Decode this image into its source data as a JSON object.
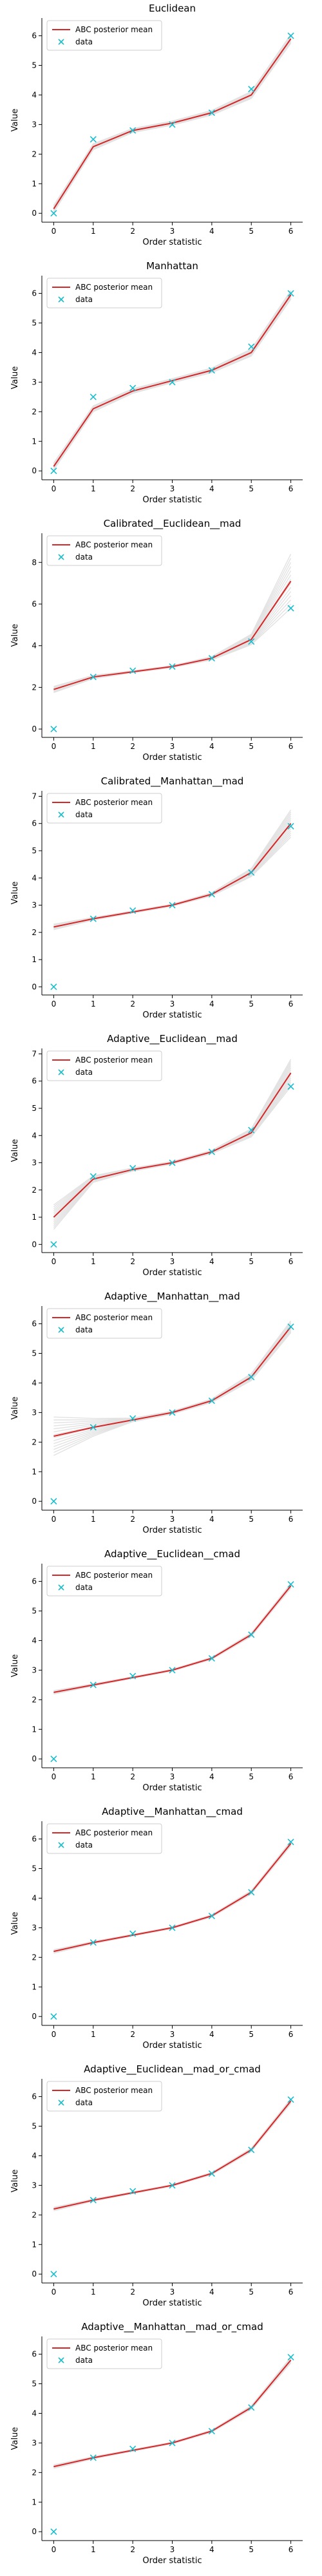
{
  "chart_data": [
    {
      "type": "line",
      "title": "Euclidean",
      "xlabel": "Order statistic",
      "ylabel": "Value",
      "xlim": [
        -0.3,
        6.3
      ],
      "ylim": [
        -0.3,
        6.6
      ],
      "xticks": [
        0,
        1,
        2,
        3,
        4,
        5,
        6
      ],
      "yticks": [
        0,
        1,
        2,
        3,
        4,
        5,
        6
      ],
      "legend": {
        "position": "top-left",
        "entries": [
          "ABC posterior mean",
          "data"
        ]
      },
      "series": [
        {
          "name": "ABC posterior mean",
          "kind": "line",
          "color": "#d62728",
          "x": [
            0,
            1,
            2,
            3,
            4,
            5,
            6
          ],
          "y": [
            0.15,
            2.25,
            2.8,
            3.05,
            3.4,
            4.0,
            5.9
          ]
        },
        {
          "name": "data",
          "kind": "marker",
          "marker": "x",
          "color": "#17becf",
          "x": [
            0,
            1,
            2,
            3,
            4,
            5,
            6
          ],
          "y": [
            0.0,
            2.5,
            2.8,
            3.0,
            3.4,
            4.2,
            6.0
          ]
        }
      ],
      "spread": [
        0.12,
        0.1,
        0.07,
        0.07,
        0.08,
        0.12,
        0.15
      ],
      "band_color": "#7f7f7f"
    },
    {
      "type": "line",
      "title": "Manhattan",
      "xlabel": "Order statistic",
      "ylabel": "Value",
      "xlim": [
        -0.3,
        6.3
      ],
      "ylim": [
        -0.3,
        6.6
      ],
      "xticks": [
        0,
        1,
        2,
        3,
        4,
        5,
        6
      ],
      "yticks": [
        0,
        1,
        2,
        3,
        4,
        5,
        6
      ],
      "legend": {
        "position": "top-left",
        "entries": [
          "ABC posterior mean",
          "data"
        ]
      },
      "series": [
        {
          "name": "ABC posterior mean",
          "kind": "line",
          "color": "#d62728",
          "x": [
            0,
            1,
            2,
            3,
            4,
            5,
            6
          ],
          "y": [
            0.15,
            2.1,
            2.7,
            3.05,
            3.4,
            4.0,
            5.95
          ]
        },
        {
          "name": "data",
          "kind": "marker",
          "marker": "x",
          "color": "#17becf",
          "x": [
            0,
            1,
            2,
            3,
            4,
            5,
            6
          ],
          "y": [
            0.0,
            2.5,
            2.8,
            3.0,
            3.4,
            4.2,
            6.0
          ]
        }
      ],
      "spread": [
        0.12,
        0.1,
        0.08,
        0.07,
        0.08,
        0.12,
        0.15
      ],
      "band_color": "#7f7f7f"
    },
    {
      "type": "line",
      "title": "Calibrated__Euclidean__mad",
      "xlabel": "Order statistic",
      "ylabel": "Value",
      "xlim": [
        -0.3,
        6.3
      ],
      "ylim": [
        -0.4,
        9.4
      ],
      "xticks": [
        0,
        1,
        2,
        3,
        4,
        5,
        6
      ],
      "yticks": [
        0,
        2,
        4,
        6,
        8
      ],
      "legend": {
        "position": "top-left",
        "entries": [
          "ABC posterior mean",
          "data"
        ]
      },
      "series": [
        {
          "name": "ABC posterior mean",
          "kind": "line",
          "color": "#d62728",
          "x": [
            0,
            1,
            2,
            3,
            4,
            5,
            6
          ],
          "y": [
            1.9,
            2.5,
            2.75,
            3.0,
            3.4,
            4.3,
            7.1
          ]
        },
        {
          "name": "data",
          "kind": "marker",
          "marker": "x",
          "color": "#17becf",
          "x": [
            0,
            1,
            2,
            3,
            4,
            5,
            6
          ],
          "y": [
            0.0,
            2.5,
            2.8,
            3.0,
            3.4,
            4.2,
            5.8
          ]
        }
      ],
      "spread": [
        0.15,
        0.08,
        0.05,
        0.05,
        0.08,
        0.25,
        1.3
      ],
      "band_color": "#7f7f7f"
    },
    {
      "type": "line",
      "title": "Calibrated__Manhattan__mad",
      "xlabel": "Order statistic",
      "ylabel": "Value",
      "xlim": [
        -0.3,
        6.3
      ],
      "ylim": [
        -0.3,
        7.2
      ],
      "xticks": [
        0,
        1,
        2,
        3,
        4,
        5,
        6
      ],
      "yticks": [
        0,
        1,
        2,
        3,
        4,
        5,
        6,
        7
      ],
      "legend": {
        "position": "top-left",
        "entries": [
          "ABC posterior mean",
          "data"
        ]
      },
      "series": [
        {
          "name": "ABC posterior mean",
          "kind": "line",
          "color": "#d62728",
          "x": [
            0,
            1,
            2,
            3,
            4,
            5,
            6
          ],
          "y": [
            2.2,
            2.5,
            2.75,
            3.0,
            3.4,
            4.2,
            6.0
          ]
        },
        {
          "name": "data",
          "kind": "marker",
          "marker": "x",
          "color": "#17becf",
          "x": [
            0,
            1,
            2,
            3,
            4,
            5,
            6
          ],
          "y": [
            0.0,
            2.5,
            2.8,
            3.0,
            3.4,
            4.2,
            5.9
          ]
        }
      ],
      "spread": [
        0.1,
        0.05,
        0.04,
        0.04,
        0.06,
        0.15,
        0.5
      ],
      "band_color": "#7f7f7f"
    },
    {
      "type": "line",
      "title": "Adaptive__Euclidean__mad",
      "xlabel": "Order statistic",
      "ylabel": "Value",
      "xlim": [
        -0.3,
        6.3
      ],
      "ylim": [
        -0.3,
        7.2
      ],
      "xticks": [
        0,
        1,
        2,
        3,
        4,
        5,
        6
      ],
      "yticks": [
        0,
        1,
        2,
        3,
        4,
        5,
        6,
        7
      ],
      "legend": {
        "position": "top-left",
        "entries": [
          "ABC posterior mean",
          "data"
        ]
      },
      "series": [
        {
          "name": "ABC posterior mean",
          "kind": "line",
          "color": "#d62728",
          "x": [
            0,
            1,
            2,
            3,
            4,
            5,
            6
          ],
          "y": [
            1.0,
            2.4,
            2.75,
            3.0,
            3.4,
            4.1,
            6.3
          ]
        },
        {
          "name": "data",
          "kind": "marker",
          "marker": "x",
          "color": "#17becf",
          "x": [
            0,
            1,
            2,
            3,
            4,
            5,
            6
          ],
          "y": [
            0.0,
            2.5,
            2.8,
            3.0,
            3.4,
            4.2,
            5.8
          ]
        }
      ],
      "spread": [
        0.45,
        0.12,
        0.06,
        0.05,
        0.06,
        0.15,
        0.5
      ],
      "band_color": "#7f7f7f"
    },
    {
      "type": "line",
      "title": "Adaptive__Manhattan__mad",
      "xlabel": "Order statistic",
      "ylabel": "Value",
      "xlim": [
        -0.3,
        6.3
      ],
      "ylim": [
        -0.3,
        6.6
      ],
      "xticks": [
        0,
        1,
        2,
        3,
        4,
        5,
        6
      ],
      "yticks": [
        0,
        1,
        2,
        3,
        4,
        5,
        6
      ],
      "legend": {
        "position": "top-left",
        "entries": [
          "ABC posterior mean",
          "data"
        ]
      },
      "series": [
        {
          "name": "ABC posterior mean",
          "kind": "line",
          "color": "#d62728",
          "x": [
            0,
            1,
            2,
            3,
            4,
            5,
            6
          ],
          "y": [
            2.2,
            2.5,
            2.75,
            3.0,
            3.4,
            4.2,
            5.9
          ]
        },
        {
          "name": "data",
          "kind": "marker",
          "marker": "x",
          "color": "#17becf",
          "x": [
            0,
            1,
            2,
            3,
            4,
            5,
            6
          ],
          "y": [
            0.0,
            2.5,
            2.8,
            3.0,
            3.4,
            4.2,
            5.9
          ]
        }
      ],
      "spread": [
        0.65,
        0.3,
        0.06,
        0.05,
        0.06,
        0.12,
        0.2
      ],
      "band_color": "#7f7f7f"
    },
    {
      "type": "line",
      "title": "Adaptive__Euclidean__cmad",
      "xlabel": "Order statistic",
      "ylabel": "Value",
      "xlim": [
        -0.3,
        6.3
      ],
      "ylim": [
        -0.3,
        6.6
      ],
      "xticks": [
        0,
        1,
        2,
        3,
        4,
        5,
        6
      ],
      "yticks": [
        0,
        1,
        2,
        3,
        4,
        5,
        6
      ],
      "legend": {
        "position": "top-left",
        "entries": [
          "ABC posterior mean",
          "data"
        ]
      },
      "series": [
        {
          "name": "ABC posterior mean",
          "kind": "line",
          "color": "#d62728",
          "x": [
            0,
            1,
            2,
            3,
            4,
            5,
            6
          ],
          "y": [
            2.25,
            2.5,
            2.75,
            3.0,
            3.4,
            4.2,
            5.85
          ]
        },
        {
          "name": "data",
          "kind": "marker",
          "marker": "x",
          "color": "#17becf",
          "x": [
            0,
            1,
            2,
            3,
            4,
            5,
            6
          ],
          "y": [
            0.0,
            2.5,
            2.8,
            3.0,
            3.4,
            4.2,
            5.9
          ]
        }
      ],
      "spread": [
        0.06,
        0.04,
        0.03,
        0.03,
        0.04,
        0.06,
        0.08
      ],
      "band_color": "#7f7f7f"
    },
    {
      "type": "line",
      "title": "Adaptive__Manhattan__cmad",
      "xlabel": "Order statistic",
      "ylabel": "Value",
      "xlim": [
        -0.3,
        6.3
      ],
      "ylim": [
        -0.3,
        6.6
      ],
      "xticks": [
        0,
        1,
        2,
        3,
        4,
        5,
        6
      ],
      "yticks": [
        0,
        1,
        2,
        3,
        4,
        5,
        6
      ],
      "legend": {
        "position": "top-left",
        "entries": [
          "ABC posterior mean",
          "data"
        ]
      },
      "series": [
        {
          "name": "ABC posterior mean",
          "kind": "line",
          "color": "#d62728",
          "x": [
            0,
            1,
            2,
            3,
            4,
            5,
            6
          ],
          "y": [
            2.2,
            2.5,
            2.75,
            3.0,
            3.4,
            4.2,
            5.85
          ]
        },
        {
          "name": "data",
          "kind": "marker",
          "marker": "x",
          "color": "#17becf",
          "x": [
            0,
            1,
            2,
            3,
            4,
            5,
            6
          ],
          "y": [
            0.0,
            2.5,
            2.8,
            3.0,
            3.4,
            4.2,
            5.9
          ]
        }
      ],
      "spread": [
        0.06,
        0.04,
        0.03,
        0.03,
        0.04,
        0.06,
        0.08
      ],
      "band_color": "#7f7f7f"
    },
    {
      "type": "line",
      "title": "Adaptive__Euclidean__mad_or_cmad",
      "xlabel": "Order statistic",
      "ylabel": "Value",
      "xlim": [
        -0.3,
        6.3
      ],
      "ylim": [
        -0.3,
        6.6
      ],
      "xticks": [
        0,
        1,
        2,
        3,
        4,
        5,
        6
      ],
      "yticks": [
        0,
        1,
        2,
        3,
        4,
        5,
        6
      ],
      "legend": {
        "position": "top-left",
        "entries": [
          "ABC posterior mean",
          "data"
        ]
      },
      "series": [
        {
          "name": "ABC posterior mean",
          "kind": "line",
          "color": "#d62728",
          "x": [
            0,
            1,
            2,
            3,
            4,
            5,
            6
          ],
          "y": [
            2.2,
            2.5,
            2.75,
            3.0,
            3.4,
            4.2,
            5.85
          ]
        },
        {
          "name": "data",
          "kind": "marker",
          "marker": "x",
          "color": "#17becf",
          "x": [
            0,
            1,
            2,
            3,
            4,
            5,
            6
          ],
          "y": [
            0.0,
            2.5,
            2.8,
            3.0,
            3.4,
            4.2,
            5.9
          ]
        }
      ],
      "spread": [
        0.06,
        0.04,
        0.03,
        0.03,
        0.04,
        0.06,
        0.08
      ],
      "band_color": "#7f7f7f"
    },
    {
      "type": "line",
      "title": "Adaptive__Manhattan__mad_or_cmad",
      "xlabel": "Order statistic",
      "ylabel": "Value",
      "xlim": [
        -0.3,
        6.3
      ],
      "ylim": [
        -0.3,
        6.6
      ],
      "xticks": [
        0,
        1,
        2,
        3,
        4,
        5,
        6
      ],
      "yticks": [
        0,
        1,
        2,
        3,
        4,
        5,
        6
      ],
      "legend": {
        "position": "top-left",
        "entries": [
          "ABC posterior mean",
          "data"
        ]
      },
      "series": [
        {
          "name": "ABC posterior mean",
          "kind": "line",
          "color": "#d62728",
          "x": [
            0,
            1,
            2,
            3,
            4,
            5,
            6
          ],
          "y": [
            2.2,
            2.5,
            2.75,
            3.0,
            3.4,
            4.2,
            5.8
          ]
        },
        {
          "name": "data",
          "kind": "marker",
          "marker": "x",
          "color": "#17becf",
          "x": [
            0,
            1,
            2,
            3,
            4,
            5,
            6
          ],
          "y": [
            0.0,
            2.5,
            2.8,
            3.0,
            3.4,
            4.2,
            5.9
          ]
        }
      ],
      "spread": [
        0.06,
        0.04,
        0.03,
        0.03,
        0.04,
        0.06,
        0.1
      ],
      "band_color": "#7f7f7f"
    }
  ]
}
